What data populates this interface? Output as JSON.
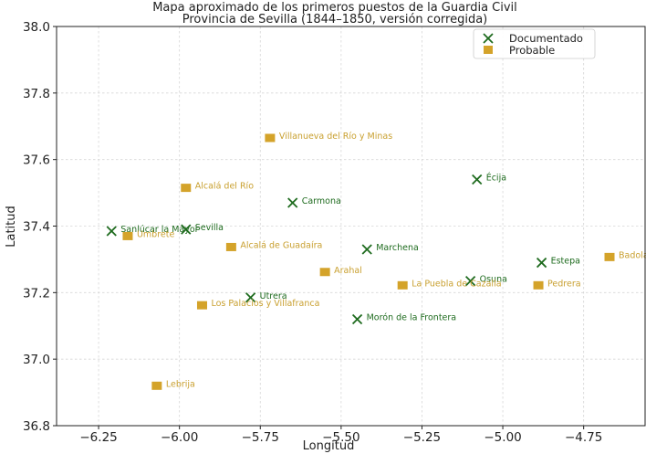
{
  "chart_data": {
    "type": "scatter",
    "title": "Mapa aproximado de los primeros puestos de la Guardia Civil",
    "subtitle": "Provincia de Sevilla (1844–1850, versión corregida)",
    "xlabel": "Longitud",
    "ylabel": "Latitud",
    "xlim": [
      -6.38,
      -4.56
    ],
    "ylim": [
      36.8,
      38.0
    ],
    "xticks": [
      -6.25,
      -6.0,
      -5.75,
      -5.5,
      -5.25,
      -5.0,
      -4.75
    ],
    "xtick_labels": [
      "−6.25",
      "−6.00",
      "−5.75",
      "−5.50",
      "−5.25",
      "−5.00",
      "−4.75"
    ],
    "yticks": [
      36.8,
      37.0,
      37.2,
      37.4,
      37.6,
      37.8,
      38.0
    ],
    "ytick_labels": [
      "36.8",
      "37.0",
      "37.2",
      "37.4",
      "37.6",
      "37.8",
      "38.0"
    ],
    "grid": true,
    "legend_position": "top-right",
    "legend": [
      "Documentado",
      "Probable"
    ],
    "colors": {
      "documentado": "#1e6b1e",
      "probable": "#d4a32a",
      "label_documentado": "#1e6b1e",
      "label_probable": "#c9a030"
    },
    "series": [
      {
        "name": "Documentado",
        "marker": "x",
        "points": [
          {
            "label": "Sanlúcar la Mayor",
            "x": -6.21,
            "y": 37.385
          },
          {
            "label": "Sevilla",
            "x": -5.98,
            "y": 37.39
          },
          {
            "label": "Carmona",
            "x": -5.65,
            "y": 37.47
          },
          {
            "label": "Écija",
            "x": -5.08,
            "y": 37.54
          },
          {
            "label": "Marchena",
            "x": -5.42,
            "y": 37.33
          },
          {
            "label": "Estepa",
            "x": -4.88,
            "y": 37.29
          },
          {
            "label": "Osuna",
            "x": -5.1,
            "y": 37.235
          },
          {
            "label": "Utrera",
            "x": -5.78,
            "y": 37.185
          },
          {
            "label": "Morón de la Frontera",
            "x": -5.45,
            "y": 37.12
          }
        ]
      },
      {
        "name": "Probable",
        "marker": "square",
        "points": [
          {
            "label": "Villanueva del Río y Minas",
            "x": -5.72,
            "y": 37.665
          },
          {
            "label": "Alcalá del Río",
            "x": -5.98,
            "y": 37.515
          },
          {
            "label": "Umbrete",
            "x": -6.16,
            "y": 37.37
          },
          {
            "label": "Alcalá de Guadaíra",
            "x": -5.84,
            "y": 37.337
          },
          {
            "label": "Arahal",
            "x": -5.55,
            "y": 37.262
          },
          {
            "label": "La Puebla de Cazalla",
            "x": -5.31,
            "y": 37.222
          },
          {
            "label": "Pedrera",
            "x": -4.89,
            "y": 37.222
          },
          {
            "label": "Badolatosa",
            "x": -4.67,
            "y": 37.307
          },
          {
            "label": "Los Palacios y Villafranca",
            "x": -5.93,
            "y": 37.162
          },
          {
            "label": "Lebrija",
            "x": -6.07,
            "y": 36.92
          }
        ]
      }
    ]
  }
}
